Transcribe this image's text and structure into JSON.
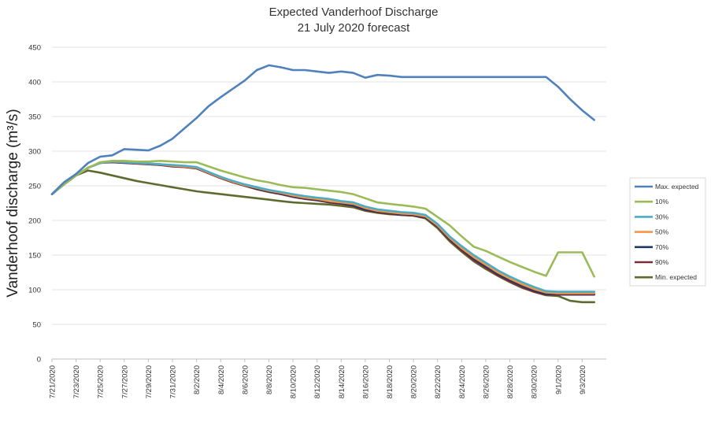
{
  "chart_data": {
    "type": "line",
    "title": "Expected Vanderhoof Discharge",
    "subtitle": "21 July 2020 forecast",
    "ylabel": "Vanderhoof discharge (m³/s)",
    "xlabel": "",
    "ylim": [
      0,
      450
    ],
    "yticks": [
      0,
      50,
      100,
      150,
      200,
      250,
      300,
      350,
      400,
      450
    ],
    "xlim": [
      "2020-07-21",
      "2020-09-05"
    ],
    "x_tick_labels": [
      "7/21/2020",
      "7/23/2020",
      "7/25/2020",
      "7/27/2020",
      "7/29/2020",
      "7/31/2020",
      "8/2/2020",
      "8/4/2020",
      "8/6/2020",
      "8/8/2020",
      "8/10/2020",
      "8/12/2020",
      "8/14/2020",
      "8/16/2020",
      "8/18/2020",
      "8/20/2020",
      "8/22/2020",
      "8/24/2020",
      "8/26/2020",
      "8/28/2020",
      "8/30/2020",
      "9/1/2020",
      "9/3/2020"
    ],
    "grid": "horizontal",
    "legend_position": "right",
    "x": [
      "2020-07-21",
      "2020-07-22",
      "2020-07-23",
      "2020-07-24",
      "2020-07-25",
      "2020-07-26",
      "2020-07-27",
      "2020-07-28",
      "2020-07-29",
      "2020-07-30",
      "2020-07-31",
      "2020-08-01",
      "2020-08-02",
      "2020-08-03",
      "2020-08-04",
      "2020-08-05",
      "2020-08-06",
      "2020-08-07",
      "2020-08-08",
      "2020-08-09",
      "2020-08-10",
      "2020-08-11",
      "2020-08-12",
      "2020-08-13",
      "2020-08-14",
      "2020-08-15",
      "2020-08-16",
      "2020-08-17",
      "2020-08-18",
      "2020-08-19",
      "2020-08-20",
      "2020-08-21",
      "2020-08-22",
      "2020-08-23",
      "2020-08-24",
      "2020-08-25",
      "2020-08-26",
      "2020-08-27",
      "2020-08-28",
      "2020-08-29",
      "2020-08-30",
      "2020-08-31",
      "2020-09-01",
      "2020-09-02",
      "2020-09-03",
      "2020-09-04"
    ],
    "series": [
      {
        "name": "Max. expected",
        "color": "#4f81bd",
        "values": [
          238,
          255,
          267,
          283,
          292,
          294,
          303,
          302,
          301,
          308,
          318,
          333,
          348,
          365,
          378,
          390,
          402,
          417,
          424,
          421,
          417,
          417,
          415,
          413,
          415,
          413,
          406,
          410,
          409,
          407,
          407,
          407,
          407,
          407,
          407,
          407,
          407,
          407,
          407,
          407,
          407,
          407,
          393,
          375,
          359,
          345
        ]
      },
      {
        "name": "10%",
        "color": "#9bbb59",
        "values": [
          238,
          252,
          265,
          276,
          284,
          286,
          286,
          285,
          285,
          286,
          285,
          284,
          284,
          278,
          272,
          267,
          262,
          258,
          255,
          251,
          248,
          247,
          245,
          243,
          241,
          238,
          232,
          226,
          224,
          222,
          220,
          217,
          205,
          193,
          177,
          162,
          156,
          148,
          140,
          133,
          126,
          120,
          154,
          154,
          154,
          119
        ]
      },
      {
        "name": "30%",
        "color": "#4bacc6",
        "values": [
          238,
          252,
          265,
          276,
          283,
          285,
          284,
          283,
          282,
          281,
          280,
          279,
          277,
          270,
          263,
          257,
          252,
          248,
          244,
          241,
          238,
          235,
          233,
          231,
          228,
          226,
          220,
          216,
          214,
          212,
          211,
          208,
          195,
          177,
          163,
          150,
          139,
          128,
          119,
          111,
          104,
          98,
          97,
          97,
          97,
          97
        ]
      },
      {
        "name": "50%",
        "color": "#f79646",
        "values": [
          238,
          252,
          265,
          276,
          283,
          285,
          284,
          283,
          282,
          281,
          279,
          278,
          276,
          269,
          262,
          256,
          251,
          247,
          243,
          240,
          236,
          233,
          231,
          228,
          226,
          224,
          218,
          214,
          212,
          210,
          209,
          206,
          193,
          175,
          160,
          147,
          136,
          125,
          116,
          108,
          101,
          96,
          95,
          95,
          95,
          95
        ]
      },
      {
        "name": "70%",
        "color": "#1f3864",
        "values": [
          238,
          252,
          265,
          276,
          283,
          285,
          284,
          283,
          282,
          281,
          279,
          278,
          276,
          269,
          262,
          256,
          251,
          246,
          242,
          239,
          235,
          232,
          230,
          227,
          225,
          222,
          216,
          213,
          211,
          209,
          208,
          205,
          192,
          174,
          159,
          145,
          134,
          123,
          114,
          106,
          99,
          94,
          94,
          94,
          94,
          94
        ]
      },
      {
        "name": "90%",
        "color": "#7b2c3a",
        "values": [
          238,
          252,
          265,
          276,
          283,
          284,
          283,
          282,
          281,
          280,
          278,
          277,
          275,
          268,
          261,
          255,
          250,
          245,
          241,
          238,
          234,
          231,
          229,
          226,
          224,
          221,
          215,
          212,
          210,
          208,
          207,
          204,
          191,
          172,
          157,
          143,
          132,
          121,
          112,
          104,
          97,
          93,
          93,
          93,
          93,
          93
        ]
      },
      {
        "name": "Min. expected",
        "color": "#5e6b2f",
        "values": [
          238,
          252,
          265,
          272,
          269,
          265,
          261,
          257,
          254,
          251,
          248,
          245,
          242,
          240,
          238,
          236,
          234,
          232,
          230,
          228,
          226,
          225,
          224,
          223,
          221,
          219,
          214,
          211,
          209,
          208,
          207,
          203,
          189,
          170,
          155,
          141,
          130,
          120,
          111,
          103,
          97,
          92,
          91,
          84,
          82,
          82
        ]
      }
    ]
  }
}
